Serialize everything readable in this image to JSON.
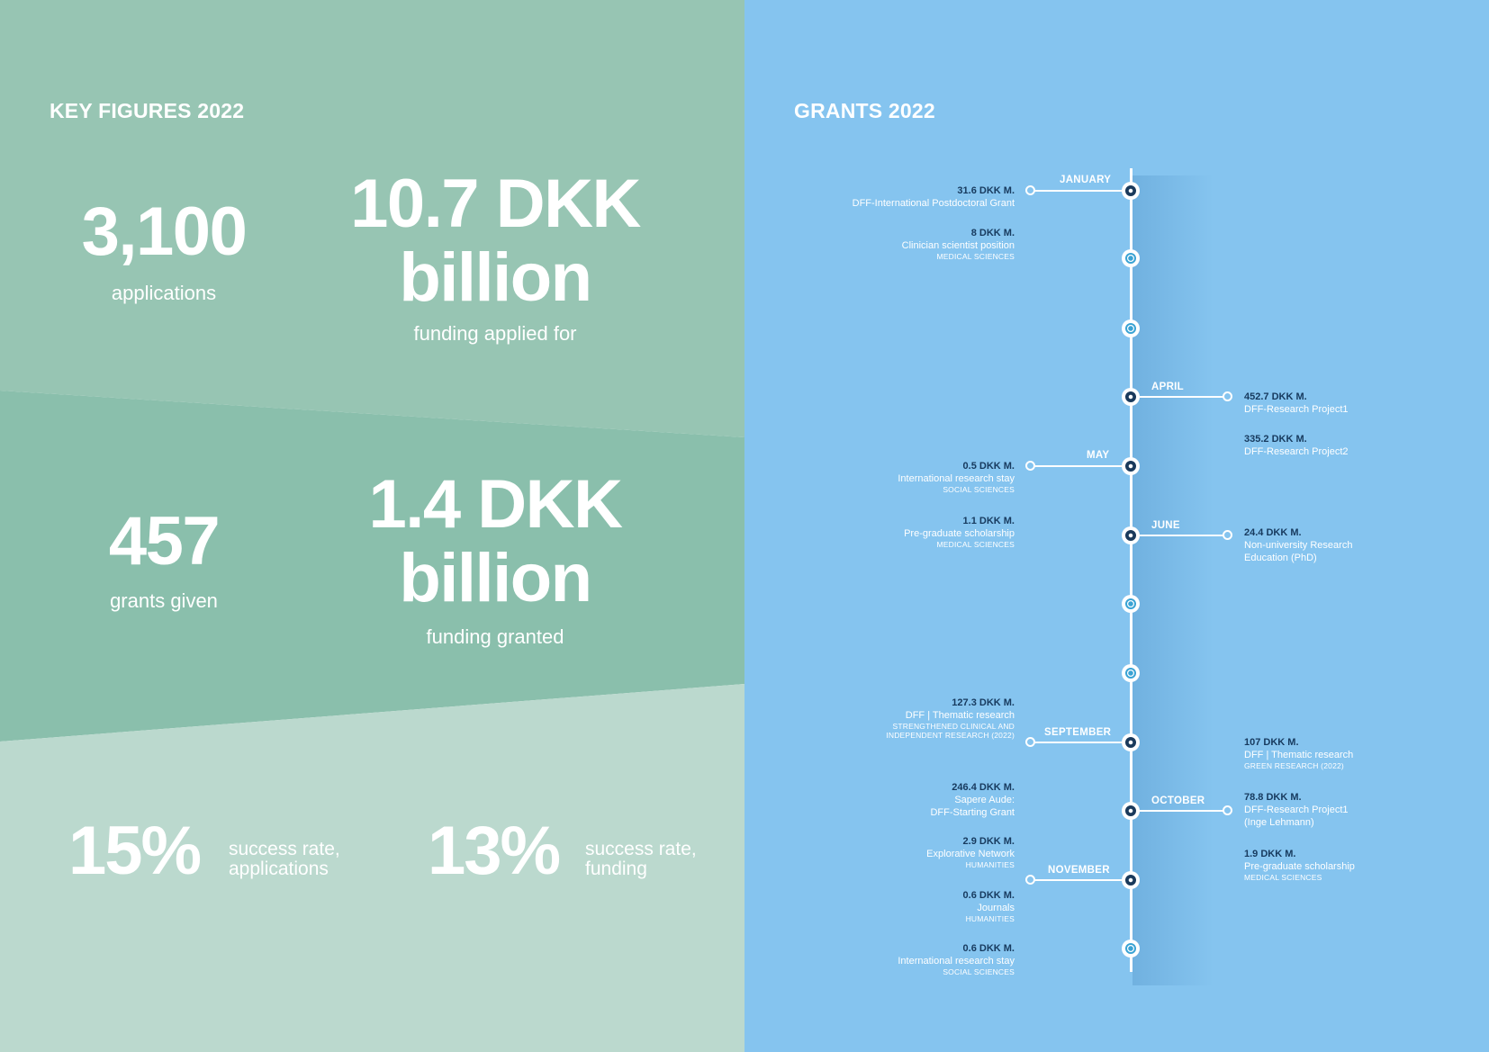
{
  "colors": {
    "band_top": "#97c5b3",
    "band_mid": "#8abfac",
    "band_bottom": "#bbd9ce",
    "right_panel": "#85c4ef",
    "amount_text": "#173a5e"
  },
  "key_figures": {
    "heading": "KEY FIGURES 2022",
    "applications": {
      "value": "3,100",
      "caption": "applications"
    },
    "funding_applied": {
      "line1": "10.7 DKK",
      "line2": "billion",
      "caption": "funding applied for"
    },
    "grants_given": {
      "value": "457",
      "caption": "grants given"
    },
    "funding_granted": {
      "line1": "1.4 DKK",
      "line2": "billion",
      "caption": "funding granted"
    },
    "success_applications": {
      "value": "15%",
      "label_line1": "success rate,",
      "label_line2": "applications"
    },
    "success_funding": {
      "value": "13%",
      "label_line1": "success rate,",
      "label_line2": "funding"
    }
  },
  "grants": {
    "heading": "GRANTS 2022",
    "months": [
      "JANUARY",
      "APRIL",
      "MAY",
      "JUNE",
      "SEPTEMBER",
      "OCTOBER",
      "NOVEMBER"
    ],
    "left_items": [
      {
        "amount": "31.6 DKK M.",
        "name": "DFF-International Postdoctoral Grant",
        "field": ""
      },
      {
        "amount": "8 DKK M.",
        "name": "Clinician scientist position",
        "field": "MEDICAL SCIENCES"
      },
      {
        "amount": "0.5 DKK M.",
        "name": "International research stay",
        "field": "SOCIAL SCIENCES"
      },
      {
        "amount": "1.1 DKK M.",
        "name": "Pre-graduate scholarship",
        "field": "MEDICAL SCIENCES"
      },
      {
        "amount": "127.3 DKK M.",
        "name": "DFF | Thematic research",
        "field": "STRENGTHENED CLINICAL AND",
        "field2": "INDEPENDENT RESEARCH (2022)"
      },
      {
        "amount": "246.4 DKK M.",
        "name": "Sapere Aude:",
        "name2": "DFF-Starting Grant"
      },
      {
        "amount": "2.9 DKK M.",
        "name": "Explorative Network",
        "field": "HUMANITIES"
      },
      {
        "amount": "0.6 DKK M.",
        "name": "Journals",
        "field": "HUMANITIES"
      },
      {
        "amount": "0.6 DKK M.",
        "name": "International research stay",
        "field": "SOCIAL SCIENCES"
      }
    ],
    "right_items": [
      {
        "amount": "452.7 DKK M.",
        "name": "DFF-Research Project1"
      },
      {
        "amount": "335.2 DKK M.",
        "name": "DFF-Research Project2"
      },
      {
        "amount": "24.4 DKK M.",
        "name": "Non-university Research",
        "name2": "Education (PhD)"
      },
      {
        "amount": "107 DKK M.",
        "name": "DFF | Thematic research",
        "field": "GREEN RESEARCH (2022)"
      },
      {
        "amount": "78.8 DKK M.",
        "name": "DFF-Research Project1",
        "name2": "(Inge Lehmann)"
      },
      {
        "amount": "1.9 DKK M.",
        "name": "Pre-graduate scholarship",
        "field": "MEDICAL SCIENCES"
      }
    ]
  }
}
